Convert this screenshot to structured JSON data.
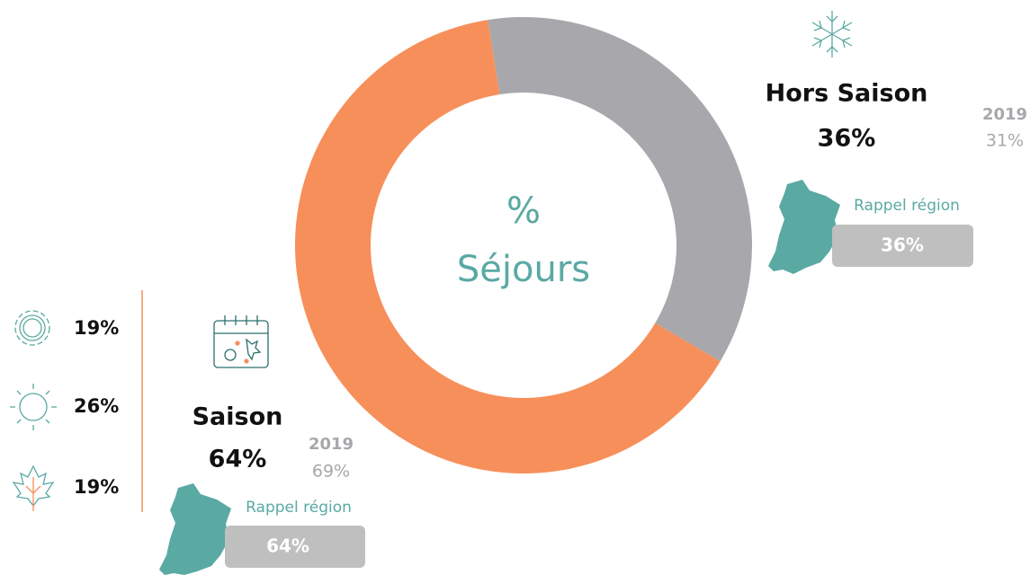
{
  "chart_data": {
    "type": "donut",
    "center_title": "%",
    "center_subtitle": "Séjours",
    "categories": [
      "Hors Saison",
      "Saison"
    ],
    "values": [
      36,
      64
    ],
    "value_labels": [
      "36%",
      "64%"
    ],
    "colors": [
      "#a8a7ab",
      "#f78f5a"
    ]
  },
  "comparison": {
    "label": "2019",
    "values": [
      "31%",
      "69%"
    ]
  },
  "region": {
    "label": "Rappel région",
    "values": [
      "36%",
      "64%"
    ]
  },
  "season_detail": [
    "19%",
    "26%",
    "19%"
  ]
}
